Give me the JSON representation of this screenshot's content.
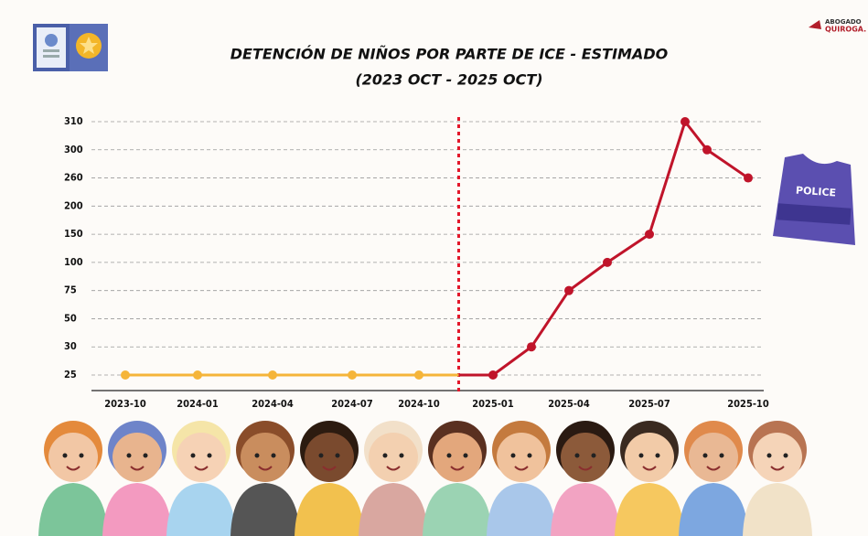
{
  "chart_data": {
    "type": "line",
    "title": "DETENCIÓN DE NIÑOS POR PARTE DE ICE - ESTIMADO",
    "subtitle": "(2023 OCT - 2025 OCT)",
    "categories": [
      "2023-10",
      "2024-01",
      "2024-04",
      "2024-07",
      "2024-10",
      "2025-01",
      null,
      "2025-04",
      null,
      "2025-07",
      null,
      null,
      "2025-10"
    ],
    "series": [
      {
        "color": "#f5b53a",
        "values": [
          25,
          25,
          25,
          25,
          25,
          null,
          null,
          null,
          null,
          null,
          null,
          null,
          null
        ]
      },
      {
        "color": "#c0142a",
        "values": [
          null,
          null,
          null,
          null,
          null,
          25,
          30,
          75,
          100,
          150,
          310,
          300,
          260
        ]
      }
    ],
    "ylim": [
      25,
      310
    ],
    "yticks": [
      25,
      30,
      50,
      75,
      100,
      150,
      200,
      260,
      300,
      310
    ],
    "grid": true
  },
  "logo": {
    "line1": "ABOGADO",
    "line2": "QUIROGA."
  },
  "vest_label": "POLICE"
}
